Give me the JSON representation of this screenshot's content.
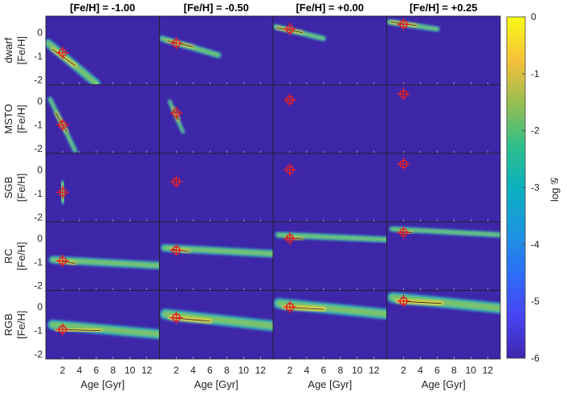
{
  "chart_data": {
    "type": "heatmap",
    "columns": [
      "[Fe/H] = -1.00",
      "[Fe/H] = -0.50",
      "[Fe/H] = +0.00",
      "[Fe/H] = +0.25"
    ],
    "rows": [
      "dwarf",
      "MSTO",
      "SGB",
      "RC",
      "RGB"
    ],
    "xlabel": "Age [Gyr]",
    "ylabel": "[Fe/H]",
    "xlim": [
      0,
      13.5
    ],
    "ylim": [
      -2.2,
      0.7
    ],
    "xticks": [
      2,
      4,
      6,
      8,
      10,
      12
    ],
    "yticks": [
      0,
      -1,
      -2
    ],
    "colorbar": {
      "label": "log 𝒢",
      "range": [
        -6,
        0
      ],
      "ticks": [
        0,
        -1,
        -2,
        -3,
        -4,
        -5,
        -6
      ],
      "colormap": "parula",
      "background": "#3e26a8"
    },
    "markers": [
      [
        {
          "age": 2.0,
          "feh": -0.85
        },
        {
          "age": 2.0,
          "feh": -0.45
        },
        {
          "age": 2.0,
          "feh": 0.15
        },
        {
          "age": 2.0,
          "feh": 0.35
        }
      ],
      [
        {
          "age": 2.0,
          "feh": -1.0
        },
        {
          "age": 2.0,
          "feh": -0.5
        },
        {
          "age": 2.0,
          "feh": 0.05
        },
        {
          "age": 2.0,
          "feh": 0.3
        }
      ],
      [
        {
          "age": 2.0,
          "feh": -0.95
        },
        {
          "age": 2.0,
          "feh": -0.5
        },
        {
          "age": 2.0,
          "feh": 0.0
        },
        {
          "age": 2.0,
          "feh": 0.25
        }
      ],
      [
        {
          "age": 2.0,
          "feh": -0.95
        },
        {
          "age": 2.0,
          "feh": -0.5
        },
        {
          "age": 2.0,
          "feh": 0.0
        },
        {
          "age": 2.0,
          "feh": 0.25
        }
      ],
      [
        {
          "age": 2.0,
          "feh": -0.95
        },
        {
          "age": 2.0,
          "feh": -0.45
        },
        {
          "age": 2.0,
          "feh": 0.0
        },
        {
          "age": 2.0,
          "feh": 0.25
        }
      ]
    ]
  }
}
